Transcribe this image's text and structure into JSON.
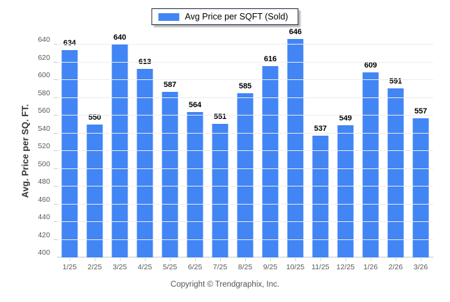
{
  "legend": {
    "label": "Avg Price per SQFT (Sold)",
    "swatch_color": "#4285f4"
  },
  "y_axis": {
    "title": "Avg. Price per SQ. FT.",
    "ticks": [
      400,
      420,
      440,
      460,
      480,
      500,
      520,
      540,
      560,
      580,
      600,
      620,
      640
    ]
  },
  "footer": {
    "copyright": "Copyright © Trendgraphix, Inc."
  },
  "chart_data": {
    "type": "bar",
    "title": "Avg Price per SQFT (Sold)",
    "categories": [
      "1/25",
      "2/25",
      "3/25",
      "4/25",
      "5/25",
      "6/25",
      "7/25",
      "8/25",
      "9/25",
      "10/25",
      "11/25",
      "12/25",
      "1/26",
      "2/26",
      "3/26"
    ],
    "values": [
      634,
      550,
      640,
      613,
      587,
      564,
      551,
      585,
      616,
      646,
      537,
      549,
      609,
      591,
      557
    ],
    "xlabel": "",
    "ylabel": "Avg. Price per SQ. FT.",
    "ylim": [
      400,
      655
    ],
    "ytick_step": 20,
    "bar_color": "#4285f4",
    "grid": true,
    "legend_position": "top-center",
    "value_labels": true
  }
}
